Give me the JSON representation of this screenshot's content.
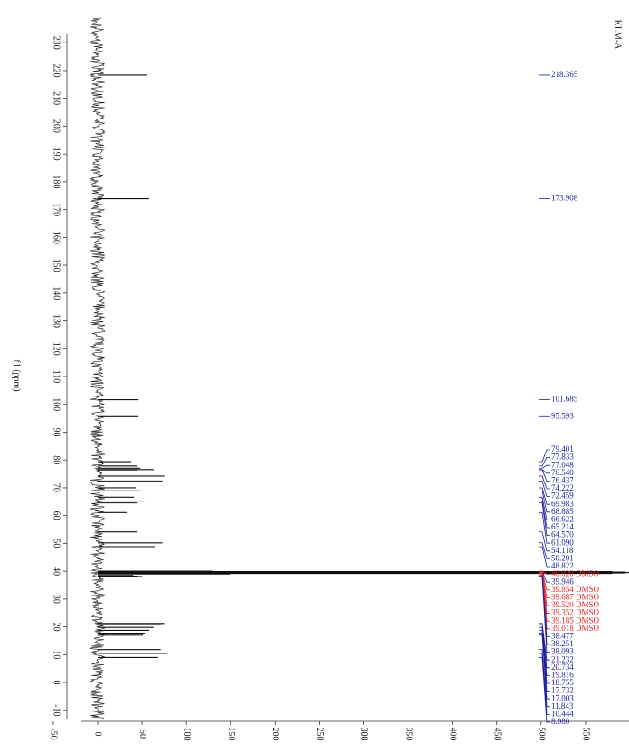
{
  "chart_data": {
    "type": "nmr",
    "title": "KLM-A",
    "xlabel": "f1 (ppm)",
    "xlim": [
      233,
      -13
    ],
    "xticks": [
      230,
      220,
      210,
      200,
      190,
      180,
      170,
      160,
      150,
      140,
      130,
      120,
      110,
      100,
      90,
      80,
      70,
      60,
      50,
      40,
      30,
      20,
      10,
      0,
      -10
    ],
    "ylim": [
      -55,
      600
    ],
    "yticks": [
      -50,
      0,
      50,
      100,
      150,
      200,
      250,
      300,
      350,
      400,
      450,
      500,
      550
    ],
    "line_color": "#111111",
    "peaks": {
      "x": [
        218.365,
        173.908,
        101.685,
        95.593,
        79.401,
        77.833,
        77.048,
        76.54,
        76.437,
        74.222,
        72.459,
        69.983,
        68.885,
        66.622,
        65.214,
        64.57,
        61.09,
        54.118,
        50.201,
        48.822,
        40.02,
        39.946,
        39.854,
        39.687,
        39.52,
        39.352,
        39.185,
        39.018,
        38.477,
        38.251,
        38.093,
        21.232,
        20.734,
        19.816,
        18.755,
        17.732,
        17.003,
        11.843,
        10.444,
        8.98
      ],
      "values": [
        56,
        58,
        46,
        46,
        38,
        45,
        48,
        63,
        45,
        76,
        73,
        43,
        48,
        41,
        53,
        45,
        33,
        45,
        73,
        65,
        130,
        50,
        580,
        595,
        600,
        595,
        580,
        150,
        40,
        45,
        50,
        76,
        71,
        63,
        58,
        53,
        51,
        71,
        79,
        68
      ],
      "x_labels": [
        "218.365",
        "173.908",
        "101.685",
        "95.593",
        "79.401",
        "77.833",
        "77.048",
        "76.540",
        "76.437",
        "74.222",
        "72.459",
        "69.983",
        "68.885",
        "66.622",
        "65.214",
        "64.570",
        "61.090",
        "54.118",
        "50.201",
        "48.822",
        "40.020 DMSO",
        "39.946",
        "39.854 DMSO",
        "39.687 DMSO",
        "39.520 DMSO",
        "39.352 DMSO",
        "39.185 DMSO",
        "39.018 DMSO",
        "38.477",
        "38.251",
        "38.093",
        "21.232",
        "20.734",
        "19.816",
        "18.755",
        "17.732",
        "17.003",
        "11.843",
        "10.444",
        "8.980"
      ],
      "colors": [
        "#1c1c9c",
        "#1c1c9c",
        "#1c1c9c",
        "#1c1c9c",
        "#1c1c9c",
        "#1c1c9c",
        "#1c1c9c",
        "#1c1c9c",
        "#1c1c9c",
        "#1c1c9c",
        "#1c1c9c",
        "#1c1c9c",
        "#1c1c9c",
        "#1c1c9c",
        "#1c1c9c",
        "#1c1c9c",
        "#1c1c9c",
        "#1c1c9c",
        "#1c1c9c",
        "#1c1c9c",
        "#e02424",
        "#1c1c9c",
        "#e02424",
        "#e02424",
        "#e02424",
        "#e02424",
        "#e02424",
        "#e02424",
        "#1c1c9c",
        "#1c1c9c",
        "#1c1c9c",
        "#1c1c9c",
        "#1c1c9c",
        "#1c1c9c",
        "#1c1c9c",
        "#1c1c9c",
        "#1c1c9c",
        "#1c1c9c",
        "#1c1c9c",
        "#1c1c9c"
      ]
    }
  }
}
